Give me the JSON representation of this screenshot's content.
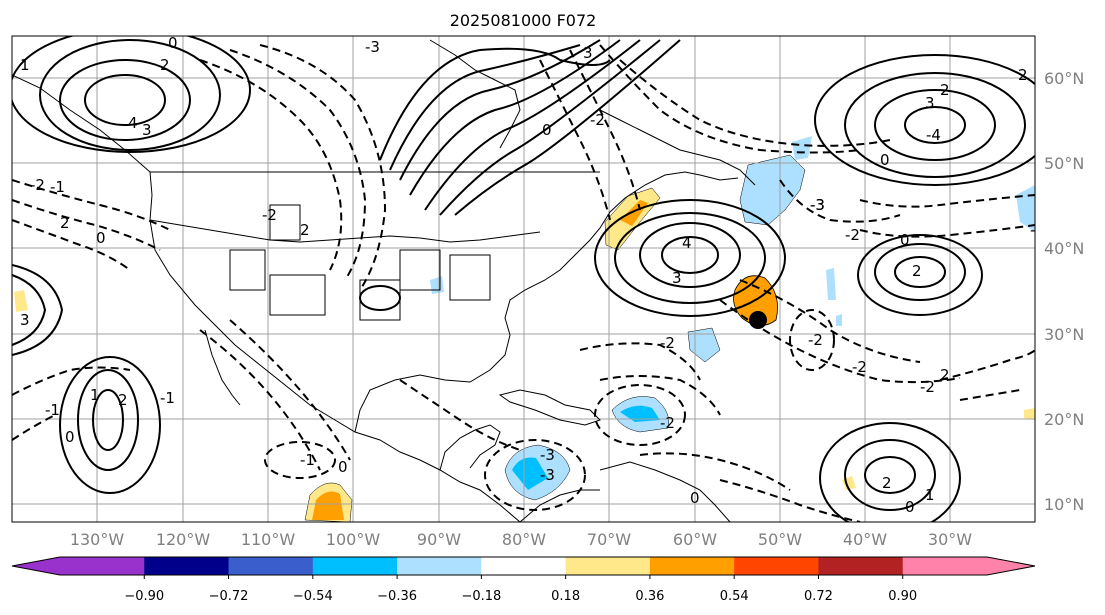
{
  "title": "2025081000 F072",
  "map": {
    "lon_labels": [
      "130°W",
      "120°W",
      "110°W",
      "100°W",
      "90°W",
      "80°W",
      "70°W",
      "60°W",
      "50°W",
      "40°W",
      "30°W"
    ],
    "lat_labels": [
      "60°N",
      "50°N",
      "40°N",
      "30°N",
      "20°N",
      "10°N"
    ],
    "gridlines": true,
    "line_color": "#000000",
    "grid_color": "#a0a0a0",
    "contour_labels": [
      "0",
      "2",
      "4",
      "3",
      "1",
      "-1",
      "-2",
      "-3",
      "0",
      "2",
      "4",
      "3",
      "-2",
      "-3",
      "0",
      "2",
      "-4",
      "3",
      "2",
      "-2",
      "-1",
      "0",
      "3",
      "-2",
      "2",
      "-2",
      "-3",
      "0",
      "2",
      "-1",
      "-2",
      "-3",
      "-2",
      "0",
      "-2",
      "-1",
      "1",
      "2",
      "3",
      "0",
      "-2",
      "2",
      "2",
      "0",
      "1",
      "0",
      "-2",
      "-3"
    ]
  },
  "colorbar": {
    "tick_labels": [
      "−0.90",
      "−0.72",
      "−0.54",
      "−0.36",
      "−0.18",
      "0.18",
      "0.36",
      "0.54",
      "0.72",
      "0.90"
    ],
    "extend": "both",
    "colors": {
      "under": "#9932CC",
      "bins": [
        "#9932CC",
        "#00008B",
        "#3A5FCD",
        "#00BFFF",
        "#ADDFFF",
        "#FFFFFF",
        "#FFE88A",
        "#FFA000",
        "#FF4500",
        "#B22222",
        "#FF82AB"
      ],
      "over": "#FF82AB"
    }
  },
  "markers": [
    {
      "name": "storm-center",
      "color": "#000000"
    }
  ]
}
